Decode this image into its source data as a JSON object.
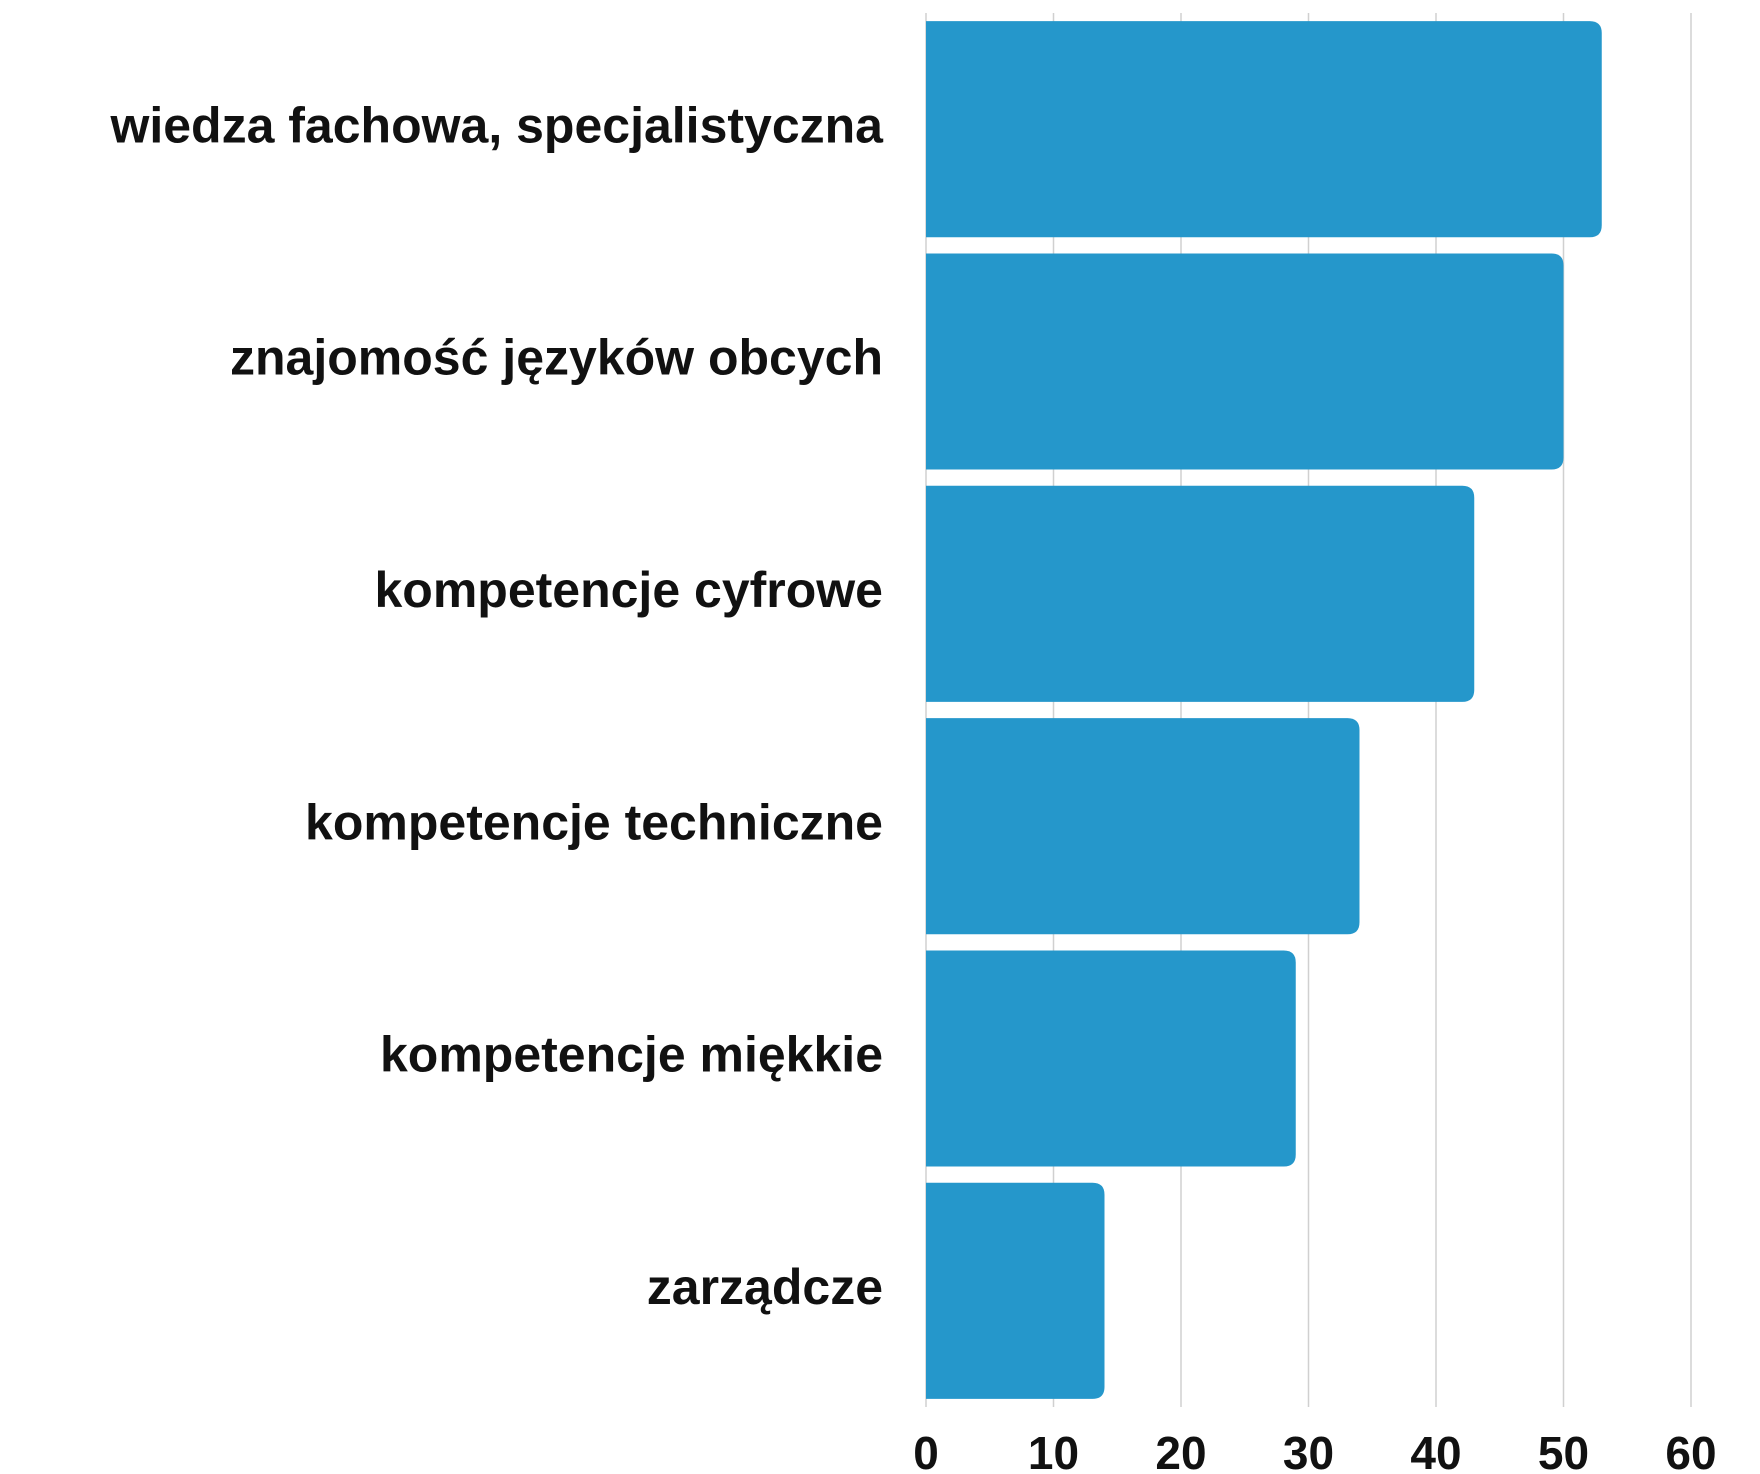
{
  "chart_data": {
    "type": "barh",
    "categories": [
      "wiedza fachowa, specjalistyczna",
      "znajomość języków obcych",
      "kompetencje cyfrowe",
      "kompetencje techniczne",
      "kompetencje miękkie",
      "zarządcze"
    ],
    "values": [
      53,
      50,
      43,
      34,
      29,
      14
    ],
    "color": "#2597cb",
    "xlim": [
      0,
      60
    ],
    "xticks": [
      0,
      10,
      20,
      30,
      40,
      50,
      60
    ],
    "grid": true
  }
}
